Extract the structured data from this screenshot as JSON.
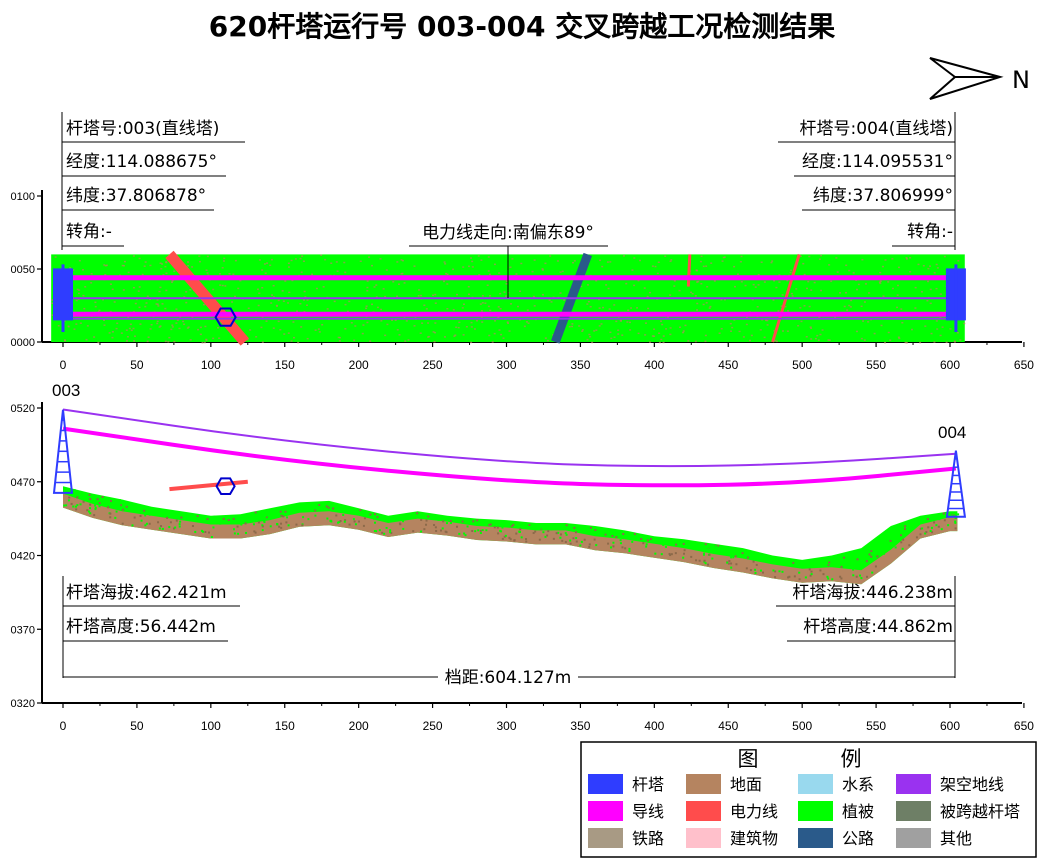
{
  "title": "620杆塔运行号 003-004 交叉跨越工况检测结果",
  "north_label": "N",
  "tower_start": {
    "id": "003",
    "number": "杆塔号:003(直线塔)",
    "longitude": "经度:114.088675°",
    "latitude": "纬度:37.806878°",
    "turn_angle": "转角:-",
    "altitude": "杆塔海拔:462.421m",
    "height": "杆塔高度:56.442m"
  },
  "tower_end": {
    "id": "004",
    "number": "杆塔号:004(直线塔)",
    "longitude": "经度:114.095531°",
    "latitude": "纬度:37.806999°",
    "turn_angle": "转角:-",
    "altitude": "杆塔海拔:446.238m",
    "height": "杆塔高度:44.862m"
  },
  "line_direction": "电力线走向:南偏东89°",
  "span_label": "档距:604.127m",
  "colors": {
    "tower": "#2f3dff",
    "conductor": "#ff00ff",
    "rail": "#a89a84",
    "ground": "#b58460",
    "powerline": "#ff4c4c",
    "building": "#ffc0cb",
    "water": "#99d9ee",
    "vegetation": "#00ff00",
    "road": "#2a5a8a",
    "groundwire": "#9a32f0",
    "crossed_tower": "#6e7f66",
    "other": "#a0a0a0"
  },
  "legend": {
    "title_a": "图",
    "title_b": "例",
    "items": [
      {
        "label": "杆塔",
        "color": "#2f3dff"
      },
      {
        "label": "地面",
        "color": "#b58460"
      },
      {
        "label": "水系",
        "color": "#99d9ee"
      },
      {
        "label": "架空地线",
        "color": "#9a32f0"
      },
      {
        "label": "导线",
        "color": "#ff00ff"
      },
      {
        "label": "电力线",
        "color": "#ff4c4c"
      },
      {
        "label": "植被",
        "color": "#00ff00"
      },
      {
        "label": "被跨越杆塔",
        "color": "#6e7f66"
      },
      {
        "label": "铁路",
        "color": "#a89a84"
      },
      {
        "label": "建筑物",
        "color": "#ffc0cb"
      },
      {
        "label": "公路",
        "color": "#2a5a8a"
      },
      {
        "label": "其他",
        "color": "#a0a0a0"
      }
    ]
  },
  "chart_data": [
    {
      "type": "scatter",
      "view": "plan",
      "xlim": [
        0,
        650
      ],
      "xticks": [
        "0",
        "50",
        "100",
        "150",
        "200",
        "250",
        "300",
        "350",
        "400",
        "450",
        "500",
        "550",
        "600",
        "650"
      ],
      "ylim": [
        0,
        100
      ],
      "yticks": [
        "0000",
        "0050",
        "0100"
      ],
      "corridor": {
        "x": [
          -8,
          610
        ],
        "y": [
          0,
          60
        ],
        "color": "#00ff00"
      },
      "series": [
        {
          "color": "#ff00ff",
          "x": [
            -5,
            605
          ],
          "y": [
            44,
            44
          ]
        },
        {
          "color": "#ff00ff",
          "x": [
            -5,
            605
          ],
          "y": [
            19,
            19
          ]
        },
        {
          "color": "#9a32f0",
          "x": [
            -5,
            605
          ],
          "y": [
            30,
            30
          ]
        },
        {
          "color": "#9a32f0",
          "x": [
            -5,
            605
          ],
          "y": [
            16,
            16
          ]
        }
      ],
      "crossings": [
        {
          "color": "#ff4c4c",
          "points": [
            [
              72,
              60
            ],
            [
              123,
              0
            ]
          ]
        },
        {
          "color": "#2a5a8a",
          "points": [
            [
              355,
              60
            ],
            [
              333,
              0
            ]
          ]
        },
        {
          "color": "#ff4c4c",
          "points": [
            [
              498,
              60
            ],
            [
              480,
              0
            ]
          ]
        },
        {
          "color": "#ff4c4c",
          "points": [
            [
              424,
              60
            ],
            [
              423,
              38
            ]
          ]
        }
      ],
      "towers": [
        {
          "x": 0,
          "y": 30
        },
        {
          "x": 604,
          "y": 30
        }
      ],
      "marker": {
        "x": 110,
        "y": 17
      }
    },
    {
      "type": "line",
      "view": "profile",
      "xlim": [
        0,
        650
      ],
      "xticks": [
        "0",
        "50",
        "100",
        "150",
        "200",
        "250",
        "300",
        "350",
        "400",
        "450",
        "500",
        "550",
        "600",
        "650"
      ],
      "ylim": [
        320,
        520
      ],
      "yticks": [
        "0320",
        "0370",
        "0420",
        "0470",
        "0520"
      ],
      "ground": {
        "x": [
          0,
          20,
          40,
          60,
          80,
          100,
          120,
          140,
          160,
          180,
          200,
          220,
          240,
          260,
          280,
          300,
          320,
          340,
          360,
          380,
          400,
          420,
          440,
          460,
          480,
          500,
          520,
          540,
          560,
          580,
          600,
          605
        ],
        "y": [
          462,
          455,
          450,
          447,
          444,
          441,
          441,
          444,
          449,
          450,
          447,
          442,
          445,
          443,
          440,
          439,
          437,
          437,
          433,
          431,
          428,
          425,
          421,
          418,
          414,
          411,
          412,
          410,
          424,
          441,
          446,
          446
        ]
      },
      "vegetation_top": {
        "x": [
          0,
          20,
          40,
          60,
          80,
          100,
          120,
          140,
          160,
          180,
          200,
          220,
          240,
          260,
          280,
          300,
          320,
          340,
          360,
          380,
          400,
          420,
          440,
          460,
          480,
          500,
          520,
          540,
          560,
          580,
          600,
          605
        ],
        "y": [
          467,
          462,
          458,
          453,
          450,
          447,
          448,
          452,
          456,
          457,
          452,
          447,
          450,
          447,
          445,
          444,
          442,
          442,
          440,
          437,
          433,
          431,
          428,
          425,
          420,
          417,
          420,
          425,
          440,
          447,
          450,
          450
        ]
      },
      "series": [
        {
          "color": "#9a32f0",
          "x": [
            0,
            150,
            300,
            400,
            500,
            604
          ],
          "y": [
            519,
            497,
            483,
            480,
            482,
            489
          ]
        },
        {
          "color": "#ff00ff",
          "x": [
            0,
            150,
            300,
            400,
            500,
            604
          ],
          "y": [
            506,
            484,
            470,
            467,
            469,
            479
          ]
        }
      ],
      "crossings": [
        {
          "color": "#ff4c4c",
          "x": [
            72,
            125
          ],
          "y": [
            465,
            470
          ]
        }
      ],
      "towers": [
        {
          "x": 0,
          "base": 462.421,
          "height": 56.442
        },
        {
          "x": 604,
          "base": 446.238,
          "height": 44.862
        }
      ],
      "marker": {
        "x": 110,
        "y": 467
      }
    }
  ]
}
